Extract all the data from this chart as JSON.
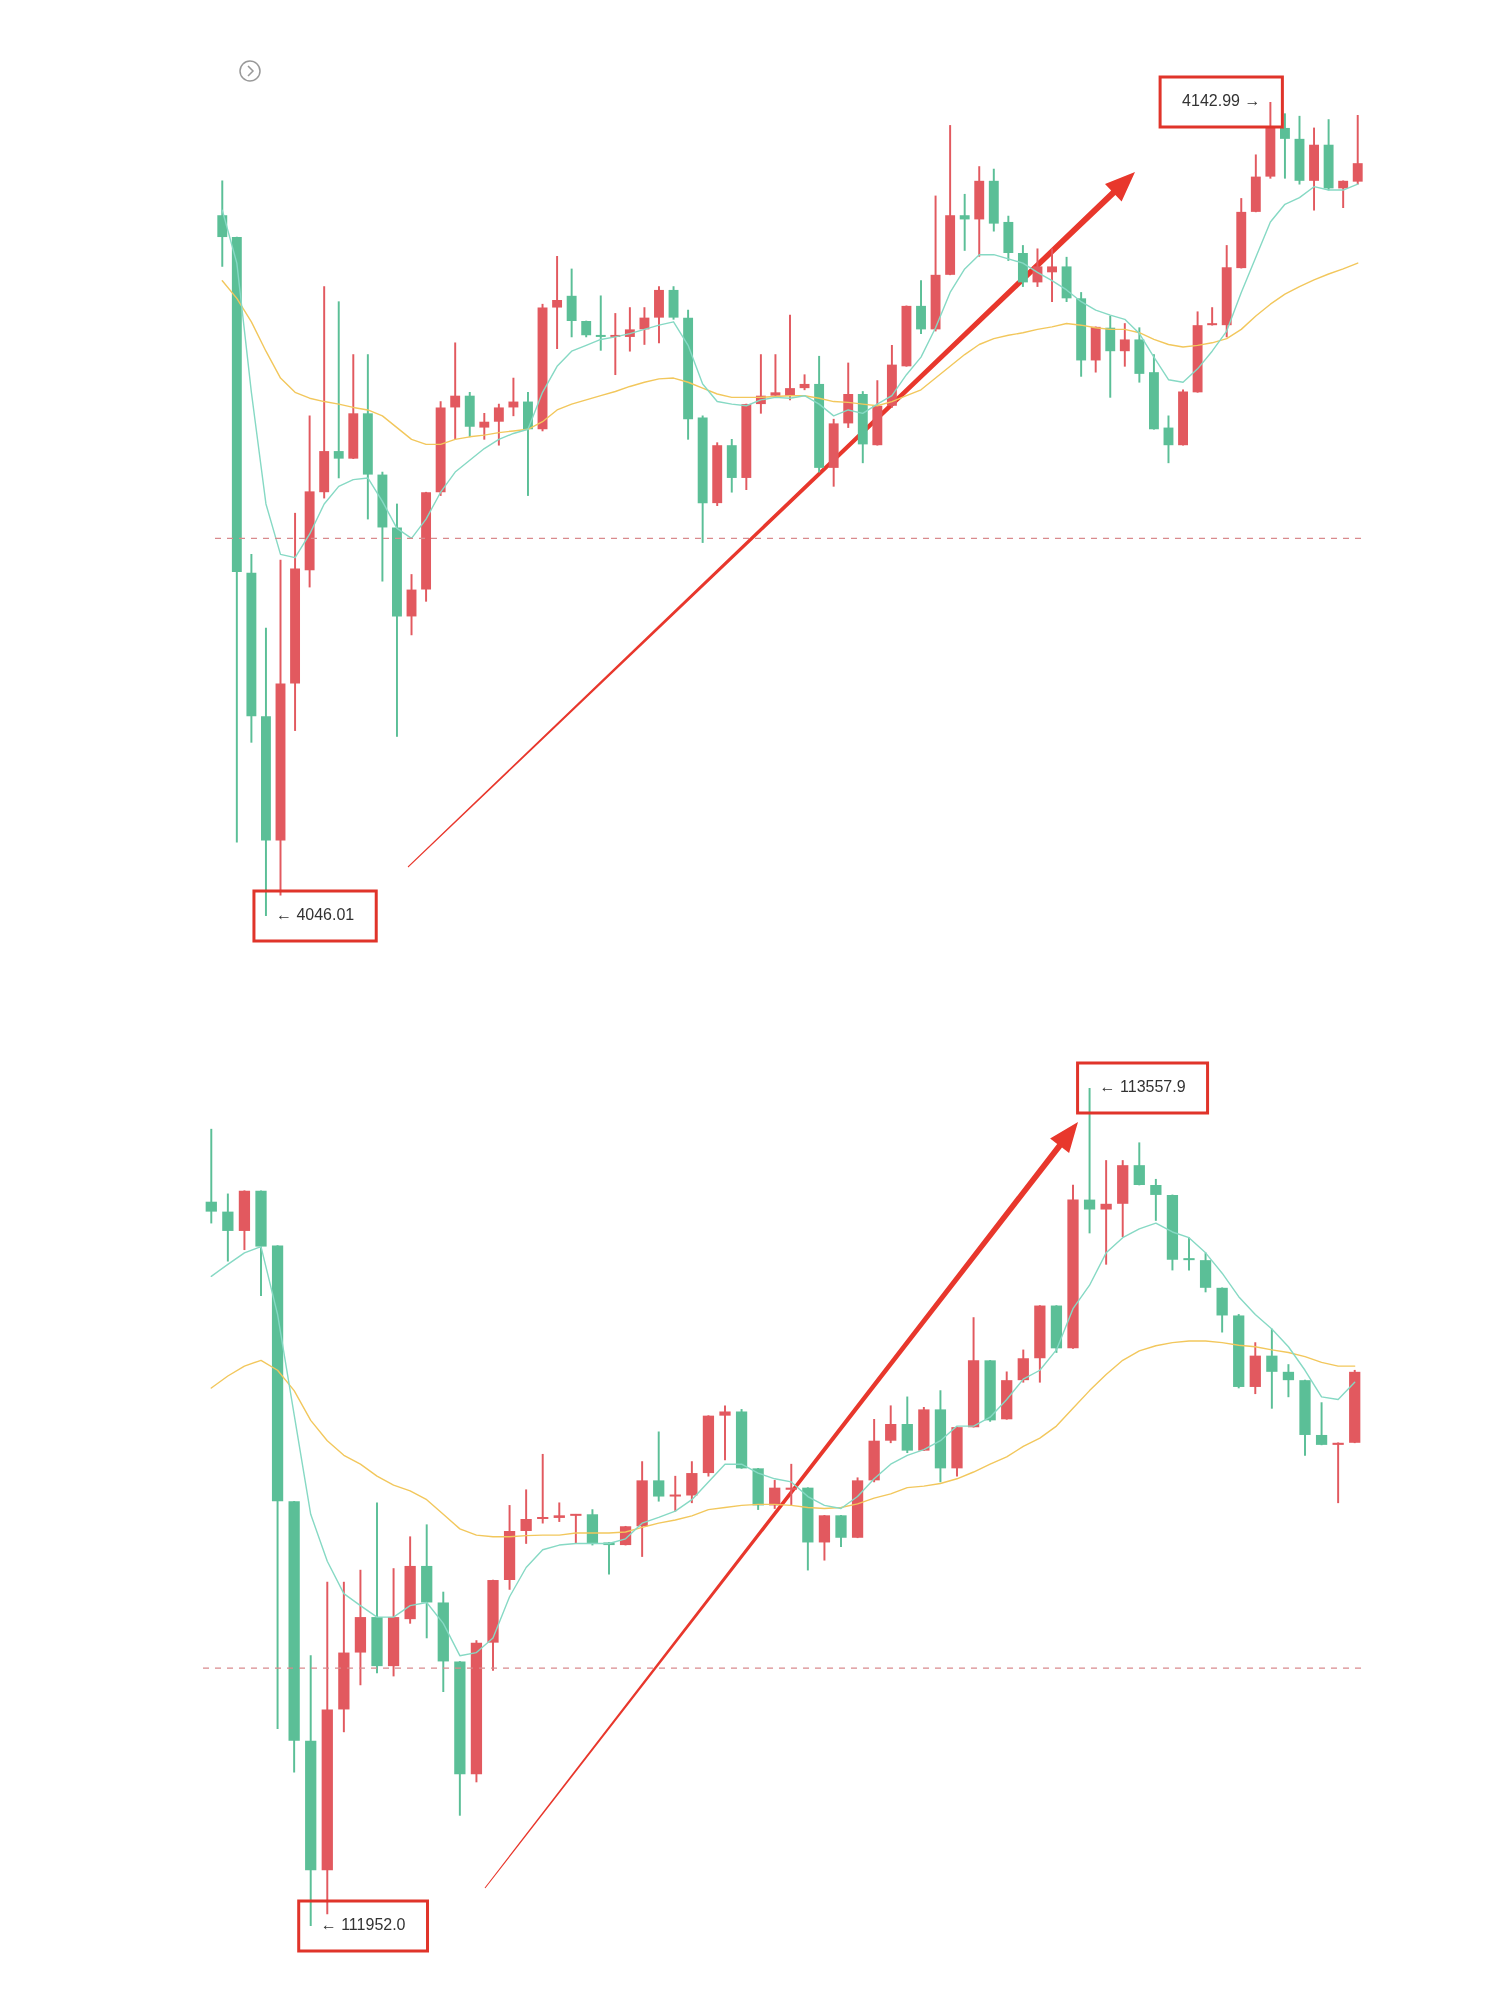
{
  "chart_data": [
    {
      "type": "candlestick",
      "tick_labels": false,
      "categories": [
        null,
        null,
        null,
        null,
        null,
        null,
        null,
        null,
        null,
        null,
        null,
        null,
        null,
        null,
        null,
        null,
        null,
        null,
        null,
        null,
        null,
        null,
        null,
        null,
        null,
        null,
        null,
        null,
        null,
        null,
        null,
        null,
        null,
        null,
        null,
        null,
        null,
        null,
        null,
        null,
        null,
        null,
        null,
        null,
        null,
        null,
        null,
        null,
        null,
        null,
        null,
        null,
        null,
        null,
        null,
        null,
        null,
        null,
        null,
        null,
        null,
        null,
        null,
        null,
        null,
        null,
        null,
        null,
        null,
        null,
        null,
        null,
        null,
        null,
        null,
        null,
        null,
        null,
        null
      ],
      "ohlc": [
        [
          4129.5,
          4133.6,
          4123.4,
          4126.9
        ],
        [
          4126.9,
          4126.9,
          4054.8,
          4087.0
        ],
        [
          4086.9,
          4089.1,
          4066.7,
          4069.8
        ],
        [
          4069.8,
          4080.3,
          4046.01,
          4055.0
        ],
        [
          4055.0,
          4088.4,
          4048.5,
          4073.7
        ],
        [
          4073.7,
          4094.0,
          4068.1,
          4087.4
        ],
        [
          4087.2,
          4105.6,
          4085.2,
          4096.6
        ],
        [
          4096.5,
          4121.0,
          4095.8,
          4101.4
        ],
        [
          4101.4,
          4119.2,
          4098.2,
          4100.5
        ],
        [
          4100.5,
          4112.9,
          4100.5,
          4105.9
        ],
        [
          4105.9,
          4112.9,
          4093.3,
          4098.6
        ],
        [
          4098.6,
          4098.9,
          4085.9,
          4092.3
        ],
        [
          4092.3,
          4095.1,
          4067.4,
          4081.7
        ],
        [
          4081.7,
          4086.7,
          4079.5,
          4084.9
        ],
        [
          4084.9,
          4096.5,
          4083.5,
          4096.5
        ],
        [
          4096.5,
          4107.3,
          4096.1,
          4106.6
        ],
        [
          4106.6,
          4114.3,
          4102.8,
          4108.0
        ],
        [
          4108.0,
          4108.4,
          4103.1,
          4104.3
        ],
        [
          4104.2,
          4105.9,
          4102.8,
          4104.9
        ],
        [
          4104.9,
          4107.0,
          4102.1,
          4106.6
        ],
        [
          4106.6,
          4110.1,
          4105.6,
          4107.3
        ],
        [
          4107.3,
          4108.4,
          4096.1,
          4104.0
        ],
        [
          4104.0,
          4118.9,
          4103.8,
          4118.5
        ],
        [
          4118.5,
          4124.6,
          4113.6,
          4119.4
        ],
        [
          4119.9,
          4123.1,
          4115.0,
          4116.9
        ],
        [
          4116.9,
          4116.9,
          4115.0,
          4115.2
        ],
        [
          4115.2,
          4119.9,
          4113.4,
          4115.0
        ],
        [
          4115.0,
          4117.8,
          4110.5,
          4115.2
        ],
        [
          4115.0,
          4118.5,
          4113.3,
          4115.9
        ],
        [
          4115.9,
          4118.5,
          4114.1,
          4117.3
        ],
        [
          4117.3,
          4121.0,
          4114.3,
          4120.6
        ],
        [
          4120.6,
          4121.0,
          4117.1,
          4117.3
        ],
        [
          4117.3,
          4118.2,
          4102.8,
          4105.2
        ],
        [
          4105.4,
          4105.6,
          4090.5,
          4095.2
        ],
        [
          4095.2,
          4102.4,
          4094.9,
          4102.1
        ],
        [
          4102.1,
          4102.8,
          4096.5,
          4098.2
        ],
        [
          4098.2,
          4107.0,
          4096.8,
          4107.0
        ],
        [
          4107.0,
          4112.9,
          4105.9,
          4108.0
        ],
        [
          4108.0,
          4112.9,
          4107.9,
          4108.4
        ],
        [
          4108.0,
          4117.6,
          4107.5,
          4108.9
        ],
        [
          4108.9,
          4110.5,
          4108.7,
          4109.4
        ],
        [
          4109.4,
          4112.7,
          4098.9,
          4099.4
        ],
        [
          4099.4,
          4105.2,
          4097.2,
          4104.7
        ],
        [
          4104.7,
          4111.9,
          4104.2,
          4108.2
        ],
        [
          4108.2,
          4108.5,
          4100.0,
          4102.2
        ],
        [
          4102.1,
          4109.8,
          4102.1,
          4106.8
        ],
        [
          4106.8,
          4114.0,
          4106.6,
          4111.7
        ],
        [
          4111.5,
          4118.7,
          4111.5,
          4118.7
        ],
        [
          4118.7,
          4121.7,
          4115.4,
          4115.9
        ],
        [
          4115.9,
          4131.8,
          4115.7,
          4122.4
        ],
        [
          4122.4,
          4140.2,
          4122.4,
          4129.5
        ],
        [
          4129.5,
          4132.0,
          4125.3,
          4129.0
        ],
        [
          4129.0,
          4135.3,
          4124.6,
          4133.6
        ],
        [
          4133.6,
          4135.0,
          4127.6,
          4128.5
        ],
        [
          4128.7,
          4129.4,
          4124.1,
          4125.0
        ],
        [
          4125.0,
          4125.9,
          4121.0,
          4121.5
        ],
        [
          4121.5,
          4125.5,
          4121.0,
          4123.4
        ],
        [
          4122.7,
          4125.5,
          4119.2,
          4123.4
        ],
        [
          4123.4,
          4124.5,
          4119.2,
          4119.6
        ],
        [
          4119.6,
          4120.3,
          4110.3,
          4112.2
        ],
        [
          4112.2,
          4116.2,
          4110.8,
          4116.2
        ],
        [
          4116.1,
          4117.5,
          4107.8,
          4113.3
        ],
        [
          4113.3,
          4116.6,
          4111.5,
          4114.7
        ],
        [
          4114.7,
          4116.1,
          4109.6,
          4110.6
        ],
        [
          4110.8,
          4112.9,
          4104.0,
          4104.0
        ],
        [
          4104.2,
          4105.6,
          4100.0,
          4102.1
        ],
        [
          4102.1,
          4108.7,
          4102.1,
          4108.5
        ],
        [
          4108.4,
          4118.0,
          4108.4,
          4116.4
        ],
        [
          4116.4,
          4118.5,
          4116.4,
          4116.6
        ],
        [
          4116.4,
          4125.9,
          4115.0,
          4123.3
        ],
        [
          4123.2,
          4131.5,
          4123.2,
          4129.9
        ],
        [
          4129.9,
          4136.7,
          4129.9,
          4134.1
        ],
        [
          4134.1,
          4142.99,
          4133.9,
          4139.9
        ],
        [
          4139.9,
          4141.6,
          4133.9,
          4138.6
        ],
        [
          4138.6,
          4141.3,
          4133.2,
          4133.6
        ],
        [
          4133.6,
          4139.9,
          4130.1,
          4137.9
        ],
        [
          4137.9,
          4140.9,
          4132.5,
          4132.7
        ],
        [
          4132.7,
          4133.6,
          4130.4,
          4133.6
        ],
        [
          4133.5,
          4141.4,
          4133.2,
          4135.7
        ]
      ],
      "colors": [
        "#5bbf97",
        "#5bbf97",
        "#5bbf97",
        "#5bbf97",
        "#e2595f",
        "#e2595f",
        "#e2595f",
        "#e2595f",
        "#5bbf97",
        "#e2595f",
        "#5bbf97",
        "#5bbf97",
        "#5bbf97",
        "#e2595f",
        "#e2595f",
        "#e2595f",
        "#e2595f",
        "#5bbf97",
        "#e2595f",
        "#e2595f",
        "#e2595f",
        "#5bbf97",
        "#e2595f",
        "#e2595f",
        "#5bbf97",
        "#5bbf97",
        "#5bbf97",
        "#e2595f",
        "#e2595f",
        "#e2595f",
        "#e2595f",
        "#5bbf97",
        "#5bbf97",
        "#5bbf97",
        "#e2595f",
        "#5bbf97",
        "#e2595f",
        "#e2595f",
        "#e2595f",
        "#e2595f",
        "#e2595f",
        "#5bbf97",
        "#e2595f",
        "#e2595f",
        "#5bbf97",
        "#e2595f",
        "#e2595f",
        "#e2595f",
        "#5bbf97",
        "#e2595f",
        "#e2595f",
        "#5bbf97",
        "#e2595f",
        "#5bbf97",
        "#5bbf97",
        "#5bbf97",
        "#e2595f",
        "#e2595f",
        "#5bbf97",
        "#5bbf97",
        "#e2595f",
        "#5bbf97",
        "#e2595f",
        "#5bbf97",
        "#5bbf97",
        "#5bbf97",
        "#e2595f",
        "#e2595f",
        "#e2595f",
        "#e2595f",
        "#e2595f",
        "#e2595f",
        "#e2595f",
        "#5bbf97",
        "#5bbf97",
        "#e2595f",
        "#5bbf97",
        "#e2595f",
        "#e2595f"
      ],
      "series": [
        {
          "type": "line",
          "color": "#86d9c4",
          "values": [
            4130.1,
            4123.8,
            4108.4,
            4095.1,
            4089.1,
            4088.7,
            4091.5,
            4095.1,
            4097.2,
            4098.0,
            4098.2,
            4095.4,
            4092.2,
            4091.0,
            4093.3,
            4096.5,
            4098.9,
            4100.3,
            4101.7,
            4102.8,
            4103.5,
            4104.0,
            4108.4,
            4111.5,
            4113.3,
            4114.0,
            4114.7,
            4115.0,
            4115.4,
            4115.9,
            4116.4,
            4116.8,
            4114.0,
            4109.4,
            4107.3,
            4107.0,
            4106.8,
            4107.5,
            4107.8,
            4107.7,
            4108.0,
            4107.0,
            4105.6,
            4106.3,
            4105.9,
            4107.0,
            4108.0,
            4110.5,
            4112.6,
            4116.1,
            4120.3,
            4123.1,
            4124.8,
            4124.8,
            4124.3,
            4123.8,
            4122.7,
            4121.7,
            4120.6,
            4119.2,
            4118.2,
            4117.6,
            4117.1,
            4115.4,
            4112.6,
            4109.9,
            4109.6,
            4111.2,
            4113.3,
            4115.7,
            4120.3,
            4124.5,
            4128.7,
            4130.8,
            4131.6,
            4132.9,
            4132.5,
            4132.5,
            4133.2
          ]
        },
        {
          "type": "line",
          "color": "#f2c75c",
          "values": [
            4121.7,
            4119.6,
            4116.8,
            4113.3,
            4110.1,
            4108.4,
            4107.7,
            4107.3,
            4107.0,
            4106.6,
            4106.3,
            4105.6,
            4104.2,
            4102.8,
            4102.2,
            4102.2,
            4102.8,
            4103.1,
            4103.3,
            4103.6,
            4103.8,
            4104.0,
            4104.9,
            4106.3,
            4107.0,
            4107.5,
            4108.0,
            4108.5,
            4109.1,
            4109.6,
            4110.0,
            4110.1,
            4109.6,
            4108.9,
            4108.2,
            4107.8,
            4107.8,
            4107.8,
            4107.9,
            4108.0,
            4108.0,
            4107.7,
            4107.3,
            4107.2,
            4107.0,
            4106.8,
            4107.3,
            4108.0,
            4108.7,
            4110.1,
            4111.5,
            4112.9,
            4114.1,
            4114.8,
            4115.2,
            4115.5,
            4115.9,
            4116.2,
            4116.6,
            4116.4,
            4116.1,
            4115.9,
            4115.9,
            4115.5,
            4114.7,
            4114.1,
            4113.8,
            4114.0,
            4114.3,
            4114.8,
            4115.9,
            4117.5,
            4118.9,
            4120.1,
            4121.0,
            4121.8,
            4122.5,
            4123.1,
            4123.8
          ]
        }
      ],
      "ref_lines": [
        {
          "axis": "y",
          "value": 4091.0,
          "color": "#d98a8d",
          "line_style": "dashed"
        }
      ],
      "annotations": [
        "4142.99 →",
        "← 4046.01"
      ]
    },
    {
      "type": "candlestick",
      "tick_labels": false,
      "categories": [
        null,
        null,
        null,
        null,
        null,
        null,
        null,
        null,
        null,
        null,
        null,
        null,
        null,
        null,
        null,
        null,
        null,
        null,
        null,
        null,
        null,
        null,
        null,
        null,
        null,
        null,
        null,
        null,
        null,
        null,
        null,
        null,
        null,
        null,
        null,
        null,
        null,
        null,
        null,
        null,
        null,
        null,
        null,
        null,
        null,
        null,
        null,
        null,
        null,
        null,
        null,
        null,
        null,
        null,
        null,
        null,
        null,
        null,
        null,
        null,
        null,
        null,
        null,
        null,
        null,
        null,
        null,
        null,
        null,
        null
      ],
      "ohlc": [
        [
          113340,
          113479,
          113299,
          113321
        ],
        [
          113321,
          113355,
          113226,
          113284
        ],
        [
          113284,
          113361,
          113248,
          113361
        ],
        [
          113361,
          113361,
          113160,
          113254
        ],
        [
          113256,
          113256,
          112330,
          112766
        ],
        [
          112766,
          112766,
          112247,
          112307
        ],
        [
          112307,
          112470,
          111952.0,
          112059
        ],
        [
          112059,
          112611,
          111975,
          112367
        ],
        [
          112367,
          112611,
          112324,
          112476
        ],
        [
          112476,
          112634,
          112414,
          112544
        ],
        [
          112544,
          112763,
          112437,
          112450
        ],
        [
          112450,
          112637,
          112431,
          112544
        ],
        [
          112540,
          112698,
          112532,
          112642
        ],
        [
          112642,
          112721,
          112504,
          112572
        ],
        [
          112572,
          112592,
          112401,
          112459
        ],
        [
          112459,
          112459,
          112164,
          112243
        ],
        [
          112243,
          112499,
          112228,
          112495
        ],
        [
          112495,
          112615,
          112442,
          112615
        ],
        [
          112615,
          112758,
          112597,
          112709
        ],
        [
          112709,
          112788,
          112685,
          112732
        ],
        [
          112732,
          112856,
          112724,
          112735
        ],
        [
          112734,
          112763,
          112727,
          112739
        ],
        [
          112738,
          112741,
          112685,
          112741
        ],
        [
          112741,
          112750,
          112682,
          112685
        ],
        [
          112687,
          112687,
          112626,
          112682
        ],
        [
          112682,
          112718,
          112682,
          112718
        ],
        [
          112718,
          112842,
          112660,
          112806
        ],
        [
          112806,
          112899,
          112766,
          112775
        ],
        [
          112775,
          112814,
          112747,
          112778
        ],
        [
          112777,
          112842,
          112763,
          112820
        ],
        [
          112820,
          112930,
          112814,
          112930
        ],
        [
          112930,
          112949,
          112845,
          112938
        ],
        [
          112938,
          112942,
          112829,
          112829
        ],
        [
          112829,
          112829,
          112750,
          112758
        ],
        [
          112758,
          112806,
          112752,
          112792
        ],
        [
          112788,
          112837,
          112758,
          112792
        ],
        [
          112792,
          112792,
          112634,
          112687
        ],
        [
          112687,
          112739,
          112653,
          112739
        ],
        [
          112739,
          112739,
          112679,
          112696
        ],
        [
          112696,
          112811,
          112696,
          112806
        ],
        [
          112806,
          112923,
          112803,
          112882
        ],
        [
          112882,
          112949,
          112878,
          112914
        ],
        [
          112914,
          112966,
          112859,
          112863
        ],
        [
          112863,
          112946,
          112863,
          112942
        ],
        [
          112942,
          112978,
          112803,
          112829
        ],
        [
          112829,
          112908,
          112814,
          112908
        ],
        [
          112908,
          113118,
          112908,
          113036
        ],
        [
          113036,
          113036,
          112919,
          112921
        ],
        [
          112923,
          113014,
          112923,
          112998
        ],
        [
          112998,
          113056,
          112994,
          113040
        ],
        [
          113040,
          113141,
          112994,
          113141
        ],
        [
          113141,
          113141,
          113051,
          113059
        ],
        [
          113059,
          113372,
          113059,
          113344
        ],
        [
          113344,
          113557.9,
          113280,
          113325
        ],
        [
          113325,
          113419,
          113220,
          113336
        ],
        [
          113336,
          113419,
          113273,
          113410
        ],
        [
          113410,
          113453,
          113372,
          113372
        ],
        [
          113372,
          113383,
          113304,
          113353
        ],
        [
          113353,
          113353,
          113209,
          113229
        ],
        [
          113231,
          113271,
          113209,
          113228
        ],
        [
          113228,
          113242,
          113167,
          113175
        ],
        [
          113175,
          113175,
          113090,
          113122
        ],
        [
          113122,
          113124,
          112983,
          112985
        ],
        [
          112985,
          113070,
          112972,
          113045
        ],
        [
          113045,
          113096,
          112944,
          113014
        ],
        [
          113014,
          113028,
          112966,
          112998
        ],
        [
          112998,
          112998,
          112854,
          112893
        ],
        [
          112893,
          112955,
          112874,
          112874
        ],
        [
          112874,
          112878,
          112763,
          112878
        ],
        [
          112878,
          113017,
          112878,
          113014
        ]
      ],
      "colors": [
        "#5bbf97",
        "#5bbf97",
        "#e2595f",
        "#5bbf97",
        "#5bbf97",
        "#5bbf97",
        "#5bbf97",
        "#e2595f",
        "#e2595f",
        "#e2595f",
        "#5bbf97",
        "#e2595f",
        "#e2595f",
        "#5bbf97",
        "#5bbf97",
        "#5bbf97",
        "#e2595f",
        "#e2595f",
        "#e2595f",
        "#e2595f",
        "#e2595f",
        "#e2595f",
        "#e2595f",
        "#5bbf97",
        "#5bbf97",
        "#e2595f",
        "#e2595f",
        "#5bbf97",
        "#e2595f",
        "#e2595f",
        "#e2595f",
        "#e2595f",
        "#5bbf97",
        "#5bbf97",
        "#e2595f",
        "#e2595f",
        "#5bbf97",
        "#e2595f",
        "#5bbf97",
        "#e2595f",
        "#e2595f",
        "#e2595f",
        "#5bbf97",
        "#e2595f",
        "#5bbf97",
        "#e2595f",
        "#e2595f",
        "#5bbf97",
        "#e2595f",
        "#e2595f",
        "#e2595f",
        "#5bbf97",
        "#e2595f",
        "#5bbf97",
        "#e2595f",
        "#e2595f",
        "#5bbf97",
        "#5bbf97",
        "#5bbf97",
        "#5bbf97",
        "#5bbf97",
        "#5bbf97",
        "#5bbf97",
        "#e2595f",
        "#5bbf97",
        "#5bbf97",
        "#5bbf97",
        "#5bbf97",
        "#e2595f",
        "#e2595f"
      ],
      "series": [
        {
          "type": "line",
          "color": "#86d9c4",
          "values": [
            113197,
            113220,
            113242,
            113254,
            113124,
            112932,
            112741,
            112651,
            112589,
            112566,
            112544,
            112544,
            112566,
            112572,
            112532,
            112470,
            112476,
            112504,
            112583,
            112639,
            112673,
            112682,
            112685,
            112685,
            112685,
            112694,
            112724,
            112735,
            112747,
            112769,
            112803,
            112837,
            112837,
            112820,
            112809,
            112803,
            112775,
            112758,
            112752,
            112775,
            112809,
            112837,
            112854,
            112865,
            112882,
            112910,
            112910,
            112927,
            112961,
            113000,
            113017,
            113056,
            113135,
            113180,
            113242,
            113271,
            113288,
            113299,
            113282,
            113271,
            113242,
            113203,
            113158,
            113124,
            113096,
            113062,
            113017,
            112966,
            112961,
            112994
          ]
        },
        {
          "type": "line",
          "color": "#f2c75c",
          "values": [
            112983,
            113006,
            113025,
            113036,
            113017,
            112978,
            112921,
            112882,
            112854,
            112837,
            112814,
            112797,
            112786,
            112769,
            112741,
            112713,
            112701,
            112698,
            112698,
            112700,
            112701,
            112701,
            112705,
            112705,
            112705,
            112707,
            112716,
            112724,
            112730,
            112738,
            112750,
            112754,
            112758,
            112760,
            112760,
            112758,
            112754,
            112752,
            112754,
            112761,
            112772,
            112780,
            112792,
            112795,
            112800,
            112809,
            112822,
            112837,
            112851,
            112871,
            112887,
            112910,
            112944,
            112978,
            113009,
            113036,
            113054,
            113064,
            113070,
            113073,
            113073,
            113070,
            113065,
            113062,
            113056,
            113051,
            113043,
            113032,
            113025,
            113025
          ]
        }
      ],
      "ref_lines": [
        {
          "axis": "y",
          "value": 112446,
          "color": "#d98a8d",
          "line_style": "dashed"
        }
      ],
      "annotations": [
        "← 113557.9",
        "← 111952.0"
      ]
    }
  ]
}
